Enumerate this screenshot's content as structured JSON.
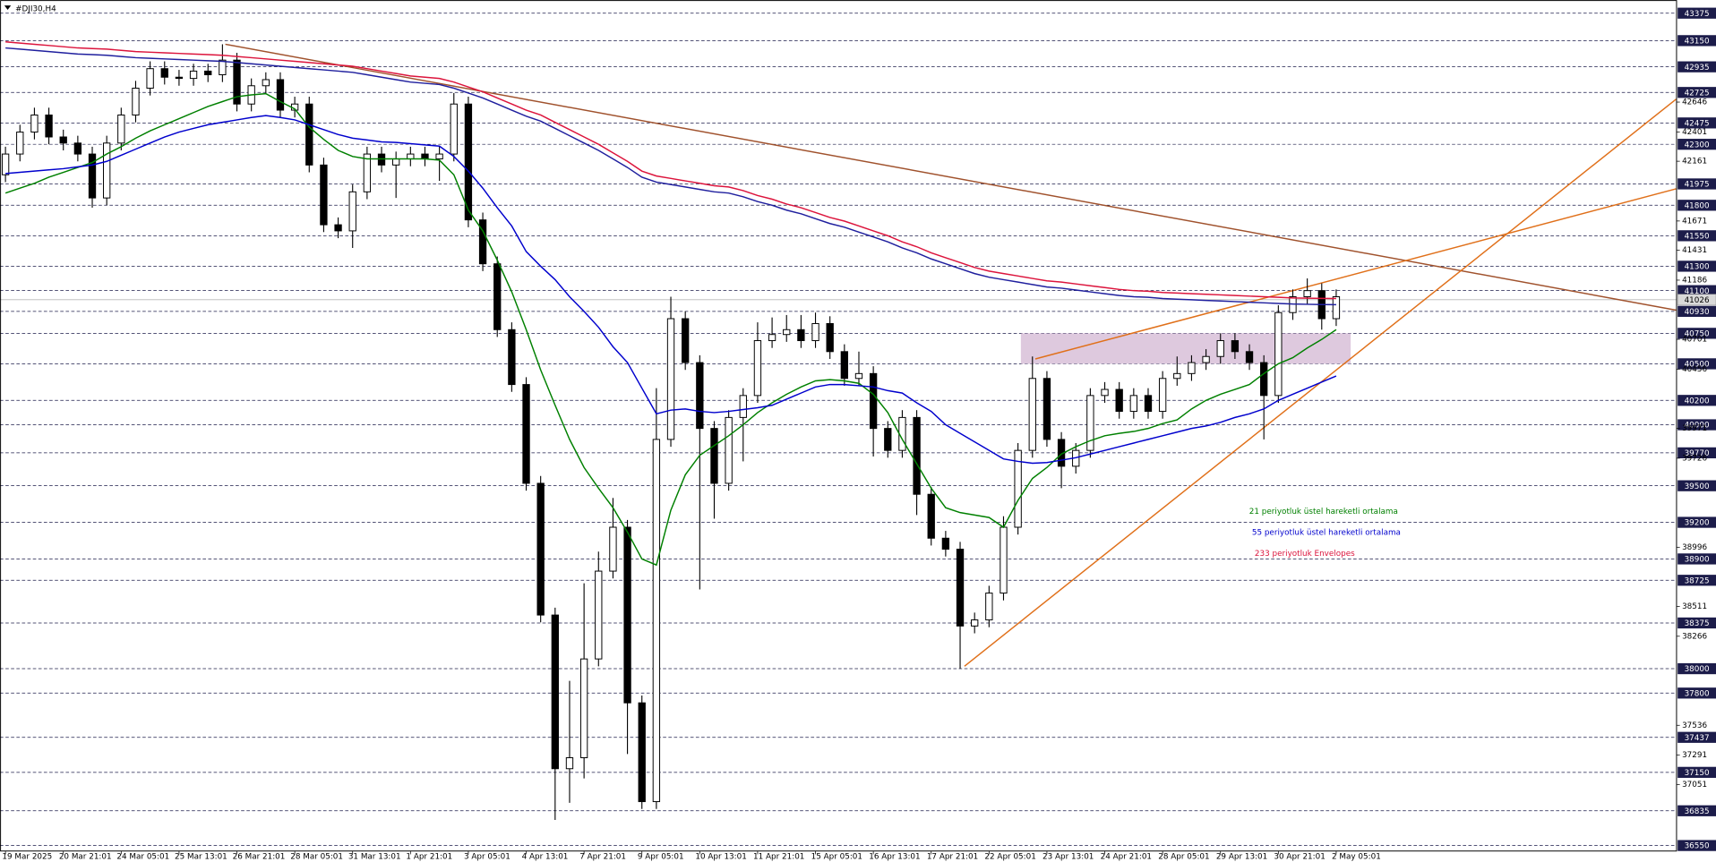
{
  "chart_data": {
    "type": "candlestick",
    "title": "#DJI30,H4",
    "categories": [
      "19 Mar 2025",
      null,
      null,
      null,
      "20 Mar 21:01",
      null,
      null,
      null,
      "24 Mar 05:01",
      null,
      null,
      null,
      "25 Mar 13:01",
      null,
      null,
      null,
      "26 Mar 21:01",
      null,
      null,
      null,
      "28 Mar 05:01",
      null,
      null,
      null,
      "31 Mar 13:01",
      null,
      null,
      null,
      "1 Apr 21:01",
      null,
      null,
      null,
      "3 Apr 05:01",
      null,
      null,
      null,
      "4 Apr 13:01",
      null,
      null,
      null,
      "7 Apr 21:01",
      null,
      null,
      null,
      "9 Apr 05:01",
      null,
      null,
      null,
      "10 Apr 13:01",
      null,
      null,
      null,
      "11 Apr 21:01",
      null,
      null,
      null,
      "15 Apr 05:01",
      null,
      null,
      null,
      "16 Apr 13:01",
      null,
      null,
      null,
      "17 Apr 21:01",
      null,
      null,
      null,
      "22 Apr 05:01",
      null,
      null,
      null,
      "23 Apr 13:01",
      null,
      null,
      null,
      "24 Apr 21:01",
      null,
      null,
      null,
      "28 Apr 05:01",
      null,
      null,
      null,
      "29 Apr 13:01",
      null,
      null,
      null,
      "30 Apr 21:01",
      null,
      null,
      null,
      "2 May 05:01"
    ],
    "open": [
      42050,
      42220,
      42400,
      42540,
      42360,
      42310,
      42220,
      41860,
      42310,
      42540,
      42760,
      42920,
      42850,
      42840,
      42900,
      42870,
      42990,
      42630,
      42780,
      42830,
      42580,
      42630,
      42130,
      41640,
      41590,
      41910,
      42220,
      42130,
      42180,
      42220,
      42180,
      42220,
      42630,
      41680,
      41320,
      40780,
      40330,
      39520,
      38440,
      37180,
      37270,
      38080,
      38800,
      39160,
      37720,
      36910,
      39880,
      40870,
      40510,
      39970,
      39520,
      40060,
      40240,
      40690,
      40740,
      40780,
      40690,
      40830,
      40600,
      40380,
      40420,
      39970,
      39790,
      40060,
      39430,
      39070,
      38980,
      38350,
      38400,
      38620,
      39160,
      39790,
      40380,
      39880,
      39660,
      39790,
      40240,
      40290,
      40110,
      40240,
      40110,
      40380,
      40420,
      40510,
      40560,
      40690,
      40600,
      40510,
      40240,
      40920,
      41050,
      41100,
      40870
    ],
    "high": [
      42280,
      42460,
      42600,
      42600,
      42420,
      42370,
      42280,
      42370,
      42600,
      42820,
      42980,
      42980,
      42910,
      42960,
      42960,
      43120,
      43050,
      42840,
      42890,
      42890,
      42690,
      42690,
      42190,
      41700,
      41970,
      42280,
      42280,
      42240,
      42280,
      42280,
      42280,
      42720,
      42690,
      41740,
      41380,
      40840,
      40390,
      39580,
      38500,
      37900,
      38700,
      38960,
      39400,
      39220,
      37780,
      40300,
      41050,
      40930,
      40570,
      40030,
      40120,
      40300,
      40840,
      40880,
      40900,
      40900,
      40920,
      40890,
      40660,
      40600,
      40480,
      40030,
      40120,
      40120,
      39490,
      39130,
      39040,
      38460,
      38680,
      39250,
      39850,
      40560,
      40440,
      39940,
      39850,
      40300,
      40350,
      40350,
      40300,
      40300,
      40440,
      40560,
      40570,
      40620,
      40750,
      40750,
      40660,
      40570,
      40980,
      41110,
      41200,
      41160,
      41110
    ],
    "low": [
      41990,
      42160,
      42340,
      42300,
      42250,
      42160,
      41780,
      41800,
      42250,
      42480,
      42700,
      42790,
      42780,
      42780,
      42810,
      42810,
      42570,
      42570,
      42720,
      42520,
      42520,
      42070,
      41580,
      41530,
      41450,
      41850,
      42070,
      41860,
      42120,
      42120,
      42000,
      42160,
      41620,
      41260,
      40720,
      40270,
      39460,
      38380,
      36760,
      36900,
      37100,
      38020,
      38740,
      37300,
      36850,
      36850,
      39820,
      40450,
      38650,
      39230,
      39460,
      39700,
      40180,
      40630,
      40680,
      40630,
      40630,
      40540,
      40320,
      40320,
      39740,
      39730,
      39730,
      39260,
      39010,
      38920,
      38000,
      38290,
      38340,
      38560,
      39100,
      39730,
      39820,
      39480,
      39600,
      39730,
      40180,
      40050,
      40050,
      40050,
      40050,
      40320,
      40360,
      40450,
      40500,
      40540,
      40450,
      39880,
      40180,
      40860,
      40990,
      40780,
      40810
    ],
    "close": [
      42220,
      42400,
      42540,
      42360,
      42310,
      42220,
      41860,
      42310,
      42540,
      42760,
      42920,
      42850,
      42840,
      42900,
      42870,
      42990,
      42630,
      42780,
      42830,
      42580,
      42630,
      42130,
      41640,
      41590,
      41910,
      42220,
      42130,
      42180,
      42220,
      42180,
      42220,
      42630,
      41680,
      41320,
      40780,
      40330,
      39520,
      38440,
      37180,
      37270,
      38080,
      38800,
      39160,
      37720,
      36910,
      39880,
      40870,
      40510,
      39970,
      39520,
      40060,
      40240,
      40690,
      40740,
      40780,
      40690,
      40830,
      40600,
      40380,
      40420,
      39970,
      39790,
      40060,
      39430,
      39070,
      38980,
      38350,
      38400,
      38620,
      39160,
      39790,
      40380,
      39880,
      39660,
      39790,
      40240,
      40290,
      40110,
      40240,
      40110,
      40380,
      40420,
      40510,
      40560,
      40690,
      40600,
      40510,
      40240,
      40920,
      41050,
      41100,
      40870,
      41050
    ],
    "color_up": "#ffffff",
    "color_down": "#000000",
    "series": [
      {
        "name": "21 periyotluk üstel hareketli ortalama",
        "color": "#008000",
        "values": [
          41900,
          41940,
          41980,
          42030,
          42070,
          42110,
          42150,
          42220,
          42280,
          42350,
          42410,
          42460,
          42510,
          42560,
          42610,
          42650,
          42690,
          42705,
          42715,
          42650,
          42590,
          42440,
          42340,
          42250,
          42200,
          42180,
          42180,
          42180,
          42180,
          42180,
          42170,
          42050,
          41760,
          41590,
          41350,
          41090,
          40780,
          40450,
          40160,
          39880,
          39650,
          39480,
          39320,
          39120,
          38900,
          38850,
          39300,
          39590,
          39750,
          39830,
          39910,
          40000,
          40100,
          40180,
          40250,
          40310,
          40360,
          40370,
          40360,
          40340,
          40250,
          40100,
          39880,
          39680,
          39480,
          39320,
          39280,
          39260,
          39240,
          39160,
          39380,
          39560,
          39650,
          39760,
          39820,
          39870,
          39910,
          39930,
          39945,
          39970,
          40010,
          40040,
          40130,
          40200,
          40250,
          40290,
          40330,
          40420,
          40500,
          40550,
          40630,
          40700,
          40780
        ]
      },
      {
        "name": "55 periyotluk üstel hareketli ortalama",
        "color": "#0000cd",
        "values": [
          42060,
          42070,
          42080,
          42090,
          42100,
          42115,
          42130,
          42160,
          42210,
          42260,
          42310,
          42360,
          42400,
          42430,
          42460,
          42480,
          42500,
          42520,
          42535,
          42520,
          42500,
          42460,
          42420,
          42380,
          42350,
          42335,
          42320,
          42315,
          42305,
          42295,
          42285,
          42200,
          42080,
          41940,
          41780,
          41630,
          41420,
          41300,
          41190,
          41050,
          40930,
          40800,
          40640,
          40510,
          40300,
          40090,
          40120,
          40130,
          40110,
          40100,
          40110,
          40125,
          40140,
          40160,
          40210,
          40260,
          40310,
          40330,
          40330,
          40320,
          40310,
          40280,
          40260,
          40180,
          40110,
          40000,
          39930,
          39860,
          39790,
          39720,
          39700,
          39685,
          39690,
          39710,
          39730,
          39760,
          39790,
          39820,
          39850,
          39880,
          39910,
          39940,
          39970,
          39990,
          40020,
          40060,
          40090,
          40130,
          40200,
          40250,
          40300,
          40350,
          40400
        ]
      },
      {
        "name": "233 periyotluk Envelopes",
        "color": "#dc143c",
        "values": [
          43140,
          43130,
          43120,
          43110,
          43100,
          43090,
          43085,
          43080,
          43070,
          43060,
          43055,
          43050,
          43045,
          43040,
          43035,
          43030,
          43020,
          43010,
          43000,
          42990,
          42980,
          42970,
          42960,
          42950,
          42940,
          42920,
          42900,
          42880,
          42860,
          42850,
          42840,
          42810,
          42770,
          42730,
          42680,
          42630,
          42580,
          42540,
          42480,
          42420,
          42360,
          42300,
          42230,
          42160,
          42080,
          42040,
          42020,
          42000,
          41980,
          41960,
          41950,
          41920,
          41880,
          41850,
          41810,
          41780,
          41740,
          41700,
          41670,
          41630,
          41590,
          41550,
          41500,
          41460,
          41410,
          41370,
          41330,
          41290,
          41260,
          41240,
          41220,
          41200,
          41180,
          41170,
          41155,
          41140,
          41125,
          41110,
          41100,
          41095,
          41085,
          41080,
          41075,
          41070,
          41065,
          41060,
          41055,
          41050,
          41045,
          41040,
          41038,
          41036,
          41035
        ],
        "lower_color": "#1f1f9e",
        "lower": [
          43090,
          43080,
          43070,
          43060,
          43050,
          43040,
          43035,
          43030,
          43020,
          43010,
          43005,
          43000,
          42995,
          42990,
          42985,
          42980,
          42970,
          42960,
          42950,
          42940,
          42930,
          42920,
          42910,
          42900,
          42890,
          42870,
          42850,
          42830,
          42810,
          42800,
          42790,
          42760,
          42720,
          42680,
          42630,
          42580,
          42530,
          42490,
          42430,
          42370,
          42310,
          42250,
          42180,
          42110,
          42030,
          41990,
          41970,
          41950,
          41930,
          41910,
          41900,
          41870,
          41830,
          41800,
          41760,
          41730,
          41690,
          41650,
          41620,
          41580,
          41540,
          41500,
          41450,
          41410,
          41360,
          41320,
          41280,
          41240,
          41210,
          41190,
          41170,
          41150,
          41130,
          41120,
          41105,
          41090,
          41075,
          41060,
          41050,
          41045,
          41035,
          41030,
          41025,
          41020,
          41015,
          41010,
          41005,
          41000,
          40995,
          40990,
          40988,
          40986,
          40985
        ]
      }
    ],
    "ylim": [
      36505,
      43456
    ],
    "yticks": [
      42646,
      42401,
      42161,
      41671,
      41431,
      41186,
      40701,
      40456,
      39971,
      39726,
      38996,
      38511,
      38266,
      37536,
      37291,
      37051
    ],
    "levels": [
      43375,
      43150,
      42935,
      42725,
      42475,
      42300,
      41975,
      41800,
      41550,
      41300,
      41100,
      40930,
      40750,
      40500,
      40200,
      40000,
      39770,
      39500,
      39200,
      38900,
      38725,
      38375,
      38000,
      37800,
      37437,
      37150,
      36835,
      36550
    ],
    "level_color": "#1c1c4a",
    "last_price": 41026,
    "trendlines": [
      {
        "color": "#a0522d",
        "x": [
          15.2,
          115.5
        ],
        "y": [
          43120,
          40940
        ]
      },
      {
        "color": "#e0701a",
        "x": [
          66.3,
          115.5
        ],
        "y": [
          38020,
          42670
        ]
      },
      {
        "color": "#e0701a",
        "x": [
          71.2,
          115.5
        ],
        "y": [
          40540,
          41935
        ]
      }
    ],
    "zone": {
      "color": "#d8bfd8",
      "x": [
        70.2,
        93
      ],
      "y": [
        40500,
        40750
      ]
    },
    "legend": "right"
  }
}
